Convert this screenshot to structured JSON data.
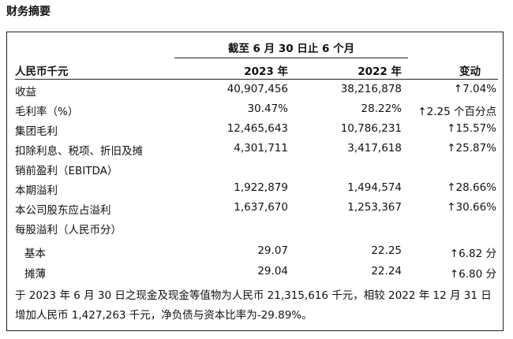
{
  "title": "财务摘要",
  "period_header": "截至 6 月 30 日止 6 个月",
  "columns": [
    "人民币千元",
    "2023 年",
    "2022 年",
    "变动"
  ],
  "rows": [
    {
      "label": "收益",
      "y2023": "40,907,456",
      "y2022": "38,216,878",
      "change": "↑7.04%"
    },
    {
      "label": "毛利率（%）",
      "y2023": "30.47%",
      "y2022": "28.22%",
      "change": "↑2.25 个百分点"
    },
    {
      "label": "集团毛利",
      "y2023": "12,465,643",
      "y2022": "10,786,231",
      "change": "↑15.57%"
    },
    {
      "label": "扣除利息、税项、折旧及摊",
      "y2023": "4,301,711",
      "y2022": "3,417,618",
      "change": "↑25.87%"
    },
    {
      "label": "销前盈利（EBITDA）",
      "y2023": "",
      "y2022": "",
      "change": ""
    },
    {
      "label": "本期溢利",
      "y2023": "1,922,879",
      "y2022": "1,494,574",
      "change": "↑28.66%"
    },
    {
      "label": "本公司股东应占溢利",
      "y2023": "1,637,670",
      "y2022": "1,253,367",
      "change": "↑30.66%"
    },
    {
      "label": "每股溢利（人民币分）",
      "y2023": "",
      "y2022": "",
      "change": ""
    },
    {
      "label": "基本",
      "y2023": "29.07",
      "y2022": "22.25",
      "change": "↑6.82 分"
    },
    {
      "label": "摊薄",
      "y2023": "29.04",
      "y2022": "22.24",
      "change": "↑6.80 分"
    }
  ],
  "note": "于 2023 年 6 月 30 日之现金及现金等值物为人民币 21,315,616 千元，相较 2022 年 12 月 31 日增加人民币 1,427,263 千元，净负债与资本比率为-29.89%。"
}
